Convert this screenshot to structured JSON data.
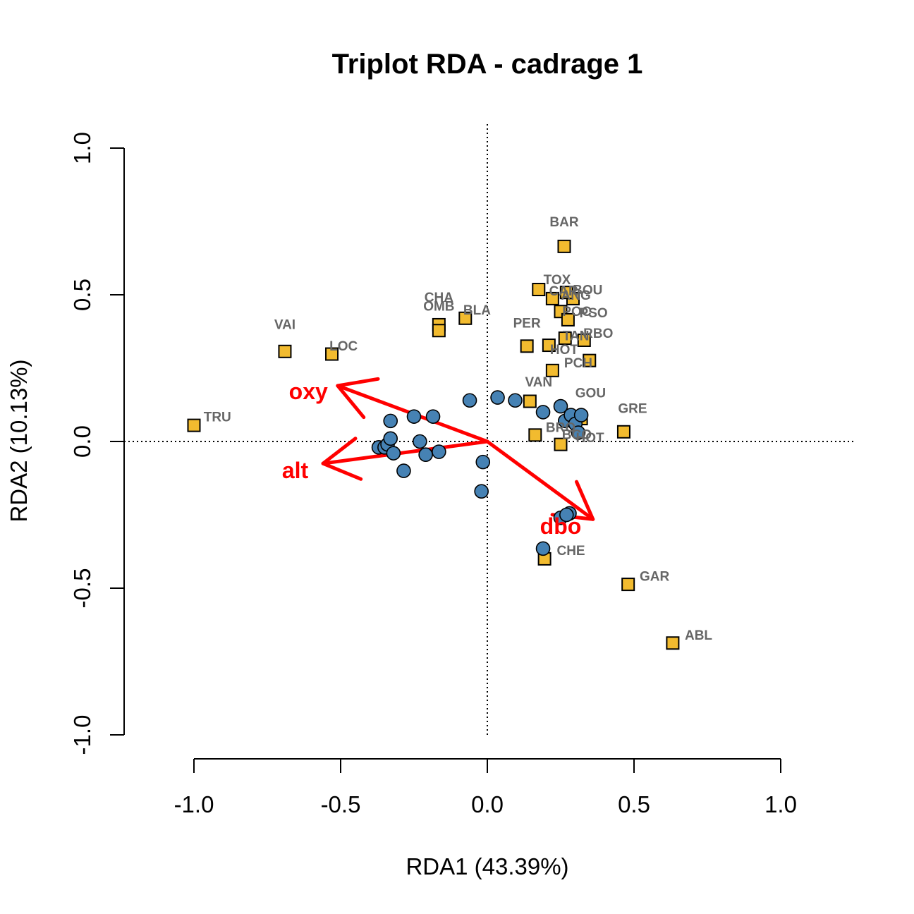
{
  "chart_data": {
    "type": "scatter",
    "title": "Triplot RDA - cadrage 1",
    "xlabel": "RDA1 (43.39%)",
    "ylabel": "RDA2 (10.13%)",
    "xlim": [
      -1.0,
      1.0
    ],
    "ylim": [
      -1.0,
      1.0
    ],
    "x_ticks": [
      "-1.0",
      "-0.5",
      "0.0",
      "0.5",
      "1.0"
    ],
    "y_ticks": [
      "-1.0",
      "-0.5",
      "0.0",
      "0.5",
      "1.0"
    ],
    "reference_lines": [
      "x = 0",
      "y = 0"
    ],
    "colors": {
      "sites": "#4682b4",
      "species": "#f2bb2f",
      "species_label": "#666666",
      "arrows": "#ff0000"
    },
    "sites": [
      {
        "x": -0.37,
        "y": -0.02
      },
      {
        "x": -0.35,
        "y": -0.02
      },
      {
        "x": -0.34,
        "y": -0.01
      },
      {
        "x": -0.33,
        "y": 0.07
      },
      {
        "x": -0.33,
        "y": 0.01
      },
      {
        "x": -0.32,
        "y": -0.04
      },
      {
        "x": -0.285,
        "y": -0.1
      },
      {
        "x": -0.25,
        "y": 0.085
      },
      {
        "x": -0.23,
        "y": 0.0
      },
      {
        "x": -0.21,
        "y": -0.045
      },
      {
        "x": -0.185,
        "y": 0.085
      },
      {
        "x": -0.165,
        "y": -0.035
      },
      {
        "x": -0.06,
        "y": 0.14
      },
      {
        "x": -0.02,
        "y": -0.17
      },
      {
        "x": -0.015,
        "y": -0.07
      },
      {
        "x": 0.035,
        "y": 0.15
      },
      {
        "x": 0.095,
        "y": 0.14
      },
      {
        "x": 0.19,
        "y": 0.1
      },
      {
        "x": 0.25,
        "y": 0.12
      },
      {
        "x": 0.265,
        "y": 0.07
      },
      {
        "x": 0.285,
        "y": 0.09
      },
      {
        "x": 0.3,
        "y": 0.06
      },
      {
        "x": 0.31,
        "y": 0.03
      },
      {
        "x": 0.32,
        "y": 0.09
      },
      {
        "x": 0.28,
        "y": -0.245
      },
      {
        "x": 0.25,
        "y": -0.26
      },
      {
        "x": 0.19,
        "y": -0.365
      },
      {
        "x": 0.27,
        "y": -0.25
      }
    ],
    "species": [
      {
        "label": "TRU",
        "x": -1.0,
        "y": 0.055
      },
      {
        "label": "VAI",
        "x": -0.69,
        "y": 0.307
      },
      {
        "label": "LOC",
        "x": -0.53,
        "y": 0.298
      },
      {
        "label": "CHA",
        "x": -0.165,
        "y": 0.398
      },
      {
        "label": "OMB",
        "x": -0.165,
        "y": 0.378
      },
      {
        "label": "BLA",
        "x": -0.075,
        "y": 0.42
      },
      {
        "label": "BAR",
        "x": 0.262,
        "y": 0.665
      },
      {
        "label": "TOX",
        "x": 0.175,
        "y": 0.518
      },
      {
        "label": "CAR",
        "x": 0.222,
        "y": 0.487
      },
      {
        "label": "ANG",
        "x": 0.292,
        "y": 0.487
      },
      {
        "label": "BOU",
        "x": 0.27,
        "y": 0.508
      },
      {
        "label": "POC",
        "x": 0.25,
        "y": 0.443
      },
      {
        "label": "PSO",
        "x": 0.275,
        "y": 0.415
      },
      {
        "label": "PER",
        "x": 0.135,
        "y": 0.325
      },
      {
        "label": "HOT",
        "x": 0.21,
        "y": 0.328
      },
      {
        "label": "TAN",
        "x": 0.265,
        "y": 0.352
      },
      {
        "label": "RBO",
        "x": 0.33,
        "y": 0.345
      },
      {
        "label": "PCH",
        "x": 0.348,
        "y": 0.276
      },
      {
        "label": "VAN",
        "x": 0.145,
        "y": 0.137
      },
      {
        "label": "GOU",
        "x": 0.222,
        "y": 0.242
      },
      {
        "label": "GRE",
        "x": 0.465,
        "y": 0.033
      },
      {
        "label": "BRO",
        "x": 0.163,
        "y": 0.022
      },
      {
        "label": "HOT",
        "x": 0.25,
        "y": -0.01
      },
      {
        "label": "BCO",
        "x": 0.32,
        "y": 0.078
      },
      {
        "label": "CHE",
        "x": 0.195,
        "y": -0.4
      },
      {
        "label": "GAR",
        "x": 0.48,
        "y": -0.487
      },
      {
        "label": "ABL",
        "x": 0.632,
        "y": -0.687
      }
    ],
    "species_label_positions": [
      {
        "label": "TRU",
        "x": -0.92,
        "y": 0.08
      },
      {
        "label": "VAI",
        "x": -0.69,
        "y": 0.395
      },
      {
        "label": "LOC",
        "x": -0.49,
        "y": 0.322
      },
      {
        "label": "CHA",
        "x": -0.165,
        "y": 0.488
      },
      {
        "label": "OMB",
        "x": -0.165,
        "y": 0.458
      },
      {
        "label": "BLA",
        "x": -0.035,
        "y": 0.445
      },
      {
        "label": "BAR",
        "x": 0.262,
        "y": 0.745
      },
      {
        "label": "TOX",
        "x": 0.238,
        "y": 0.548
      },
      {
        "label": "CAR",
        "x": 0.26,
        "y": 0.51
      },
      {
        "label": "ANG",
        "x": 0.302,
        "y": 0.495
      },
      {
        "label": "BOU",
        "x": 0.342,
        "y": 0.513
      },
      {
        "label": "POC",
        "x": 0.305,
        "y": 0.44
      },
      {
        "label": "PSO",
        "x": 0.362,
        "y": 0.435
      },
      {
        "label": "PER",
        "x": 0.135,
        "y": 0.4
      },
      {
        "label": "HOT",
        "x": 0.262,
        "y": 0.31
      },
      {
        "label": "TAN",
        "x": 0.302,
        "y": 0.357
      },
      {
        "label": "RBO",
        "x": 0.378,
        "y": 0.365
      },
      {
        "label": "PCH",
        "x": 0.31,
        "y": 0.265
      },
      {
        "label": "VAN",
        "x": 0.175,
        "y": 0.2
      },
      {
        "label": "GOU",
        "x": 0.352,
        "y": 0.162
      },
      {
        "label": "GRE",
        "x": 0.495,
        "y": 0.11
      },
      {
        "label": "BRO",
        "x": 0.25,
        "y": 0.045
      },
      {
        "label": "HOT",
        "x": 0.35,
        "y": 0.01
      },
      {
        "label": "BCO",
        "x": 0.305,
        "y": 0.02
      },
      {
        "label": "CHE",
        "x": 0.285,
        "y": -0.375
      },
      {
        "label": "GAR",
        "x": 0.57,
        "y": -0.463
      },
      {
        "label": "ABL",
        "x": 0.72,
        "y": -0.663
      }
    ],
    "arrows": [
      {
        "label": "oxy",
        "x": -0.51,
        "y": 0.19
      },
      {
        "label": "alt",
        "x": -0.56,
        "y": -0.075
      },
      {
        "label": "dbo",
        "x": 0.36,
        "y": -0.265
      }
    ],
    "arrow_label_positions": [
      {
        "label": "oxy",
        "x": -0.61,
        "y": 0.165
      },
      {
        "label": "alt",
        "x": -0.655,
        "y": -0.105
      },
      {
        "label": "dbo",
        "x": 0.25,
        "y": -0.295
      }
    ]
  }
}
